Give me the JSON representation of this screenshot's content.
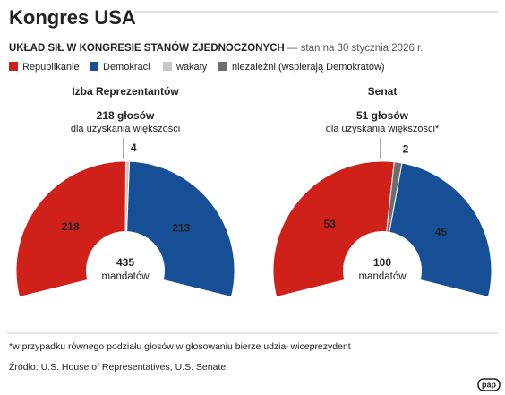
{
  "header": {
    "title": "Kongres USA",
    "subtitle_bold": "UKŁAD SIŁ W KONGRESIE STANÓW ZJEDNOCZONYCH",
    "subtitle": "— stan na 30 stycznia 2026 r."
  },
  "chart_data": {
    "type": "semi-donut",
    "categories": [
      "Izba Reprezentantów",
      "Senat"
    ],
    "series": [
      {
        "name": "Republikanie",
        "color": "#d0201a",
        "values": [
          218,
          53
        ]
      },
      {
        "name": "Demokraci",
        "color": "#174f96",
        "values": [
          213,
          45
        ]
      },
      {
        "name": "wakaty",
        "color": "#c6c8ca",
        "values": [
          4,
          null
        ]
      },
      {
        "name": "niezależni (wspierają Demokratów)",
        "color": "#6d6e70",
        "values": [
          null,
          2
        ]
      }
    ],
    "majority_labels": [
      "218 głosów",
      "51 głosów"
    ],
    "majority_notes": [
      "dla uzyskania większości",
      "dla uzyskania większości*"
    ],
    "totals": [
      435,
      100
    ],
    "total_label": "mandatów"
  },
  "footnote": "*w przypadku równego podziału głosów w głosowaniu bierze udział wiceprezydent",
  "source": "Źródło: U.S. House of Representatives, U.S. Senate",
  "logo": "pap"
}
